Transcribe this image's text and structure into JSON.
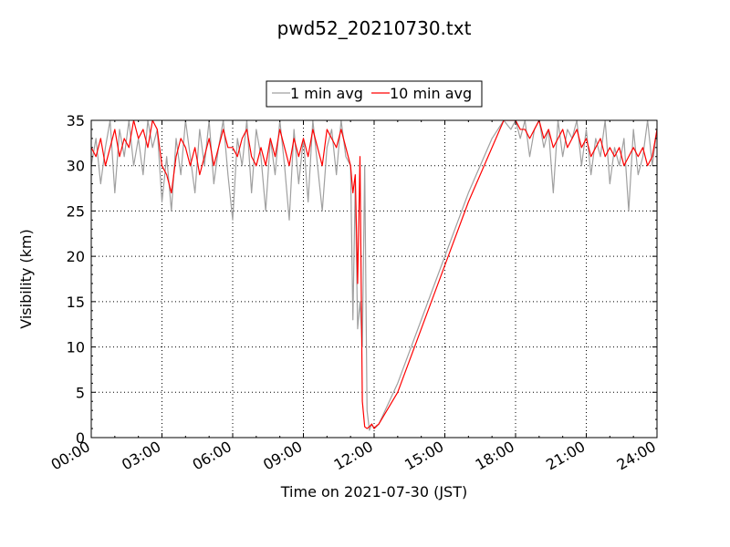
{
  "chart_data": {
    "type": "line",
    "title": "pwd52_20210730.txt",
    "xlabel": "Time on 2021-07-30 (JST)",
    "ylabel": "Visibility (km)",
    "xlim": [
      0,
      24
    ],
    "ylim": [
      0,
      35
    ],
    "xticks": [
      0,
      3,
      6,
      9,
      12,
      15,
      18,
      21,
      24
    ],
    "xtick_labels": [
      "00:00",
      "03:00",
      "06:00",
      "09:00",
      "12:00",
      "15:00",
      "18:00",
      "21:00",
      "24:00"
    ],
    "yticks": [
      0,
      5,
      10,
      15,
      20,
      25,
      30,
      35
    ],
    "ytick_labels": [
      "0",
      "5",
      "10",
      "15",
      "20",
      "25",
      "30",
      "35"
    ],
    "grid": true,
    "legend_position": "top-center",
    "series": [
      {
        "name": "1 min avg",
        "color": "#a0a0a0",
        "x": [
          0.0,
          0.2,
          0.4,
          0.6,
          0.8,
          1.0,
          1.2,
          1.4,
          1.6,
          1.8,
          2.0,
          2.2,
          2.4,
          2.6,
          2.8,
          3.0,
          3.2,
          3.4,
          3.6,
          3.8,
          4.0,
          4.2,
          4.4,
          4.6,
          4.8,
          5.0,
          5.2,
          5.4,
          5.6,
          5.8,
          6.0,
          6.2,
          6.4,
          6.6,
          6.8,
          7.0,
          7.2,
          7.4,
          7.6,
          7.8,
          8.0,
          8.2,
          8.4,
          8.6,
          8.8,
          9.0,
          9.2,
          9.4,
          9.6,
          9.8,
          10.0,
          10.2,
          10.4,
          10.6,
          10.8,
          11.0,
          11.1,
          11.2,
          11.3,
          11.4,
          11.5,
          11.6,
          11.7,
          11.8,
          11.9,
          12.0,
          12.1,
          12.2,
          13.0,
          14.0,
          15.0,
          16.0,
          17.0,
          17.5,
          17.8,
          18.0,
          18.2,
          18.4,
          18.6,
          18.8,
          19.0,
          19.2,
          19.4,
          19.6,
          19.8,
          20.0,
          20.2,
          20.4,
          20.6,
          20.8,
          21.0,
          21.2,
          21.4,
          21.6,
          21.8,
          22.0,
          22.2,
          22.4,
          22.6,
          22.8,
          23.0,
          23.2,
          23.4,
          23.6,
          23.8,
          24.0
        ],
        "values": [
          30,
          33,
          28,
          32,
          35,
          27,
          34,
          31,
          35,
          30,
          33,
          29,
          35,
          32,
          34,
          26,
          31,
          25,
          33,
          29,
          35,
          31,
          27,
          34,
          30,
          35,
          28,
          32,
          35,
          29,
          24,
          33,
          30,
          35,
          27,
          34,
          31,
          25,
          33,
          29,
          35,
          30,
          24,
          34,
          28,
          33,
          26,
          35,
          30,
          25,
          32,
          34,
          29,
          35,
          31,
          30,
          13,
          28,
          12,
          15,
          10,
          30,
          3,
          0.8,
          1.5,
          1.0,
          1.2,
          1.5,
          6,
          13,
          20,
          27,
          33,
          35,
          34,
          35,
          33,
          35,
          31,
          34,
          35,
          32,
          34,
          27,
          35,
          31,
          34,
          33,
          35,
          30,
          34,
          29,
          33,
          31,
          35,
          28,
          32,
          30,
          33,
          25,
          34,
          29,
          31,
          35,
          30,
          34
        ]
      },
      {
        "name": "10 min avg",
        "color": "#ff0000",
        "x": [
          0.0,
          0.2,
          0.4,
          0.6,
          0.8,
          1.0,
          1.2,
          1.4,
          1.6,
          1.8,
          2.0,
          2.2,
          2.4,
          2.6,
          2.8,
          3.0,
          3.2,
          3.4,
          3.6,
          3.8,
          4.0,
          4.2,
          4.4,
          4.6,
          4.8,
          5.0,
          5.2,
          5.4,
          5.6,
          5.8,
          6.0,
          6.2,
          6.4,
          6.6,
          6.8,
          7.0,
          7.2,
          7.4,
          7.6,
          7.8,
          8.0,
          8.2,
          8.4,
          8.6,
          8.8,
          9.0,
          9.2,
          9.4,
          9.6,
          9.8,
          10.0,
          10.2,
          10.4,
          10.6,
          10.8,
          11.0,
          11.1,
          11.2,
          11.3,
          11.4,
          11.5,
          11.6,
          11.7,
          11.8,
          11.9,
          12.0,
          12.1,
          12.2,
          13.0,
          14.0,
          15.0,
          16.0,
          17.0,
          17.5,
          17.8,
          18.0,
          18.2,
          18.4,
          18.6,
          18.8,
          19.0,
          19.2,
          19.4,
          19.6,
          19.8,
          20.0,
          20.2,
          20.4,
          20.6,
          20.8,
          21.0,
          21.2,
          21.4,
          21.6,
          21.8,
          22.0,
          22.2,
          22.4,
          22.6,
          22.8,
          23.0,
          23.2,
          23.4,
          23.6,
          23.8,
          24.0
        ],
        "values": [
          32,
          31,
          33,
          30,
          32,
          34,
          31,
          33,
          32,
          35,
          33,
          34,
          32,
          35,
          34,
          30,
          29,
          27,
          31,
          33,
          32,
          30,
          32,
          29,
          31,
          33,
          30,
          32,
          34,
          32,
          32,
          31,
          33,
          34,
          31,
          30,
          32,
          30,
          33,
          31,
          34,
          32,
          30,
          33,
          31,
          33,
          31,
          34,
          32,
          30,
          34,
          33,
          32,
          34,
          32,
          30,
          27,
          29,
          17,
          31,
          4,
          1.2,
          1.0,
          1.2,
          1.5,
          1.0,
          1.3,
          1.5,
          5,
          12,
          19,
          26,
          32,
          35,
          35,
          35,
          34,
          34,
          33,
          34,
          35,
          33,
          34,
          32,
          33,
          34,
          32,
          33,
          34,
          32,
          33,
          31,
          32,
          33,
          31,
          32,
          31,
          32,
          30,
          31,
          32,
          31,
          32,
          30,
          31,
          34
        ]
      }
    ]
  }
}
